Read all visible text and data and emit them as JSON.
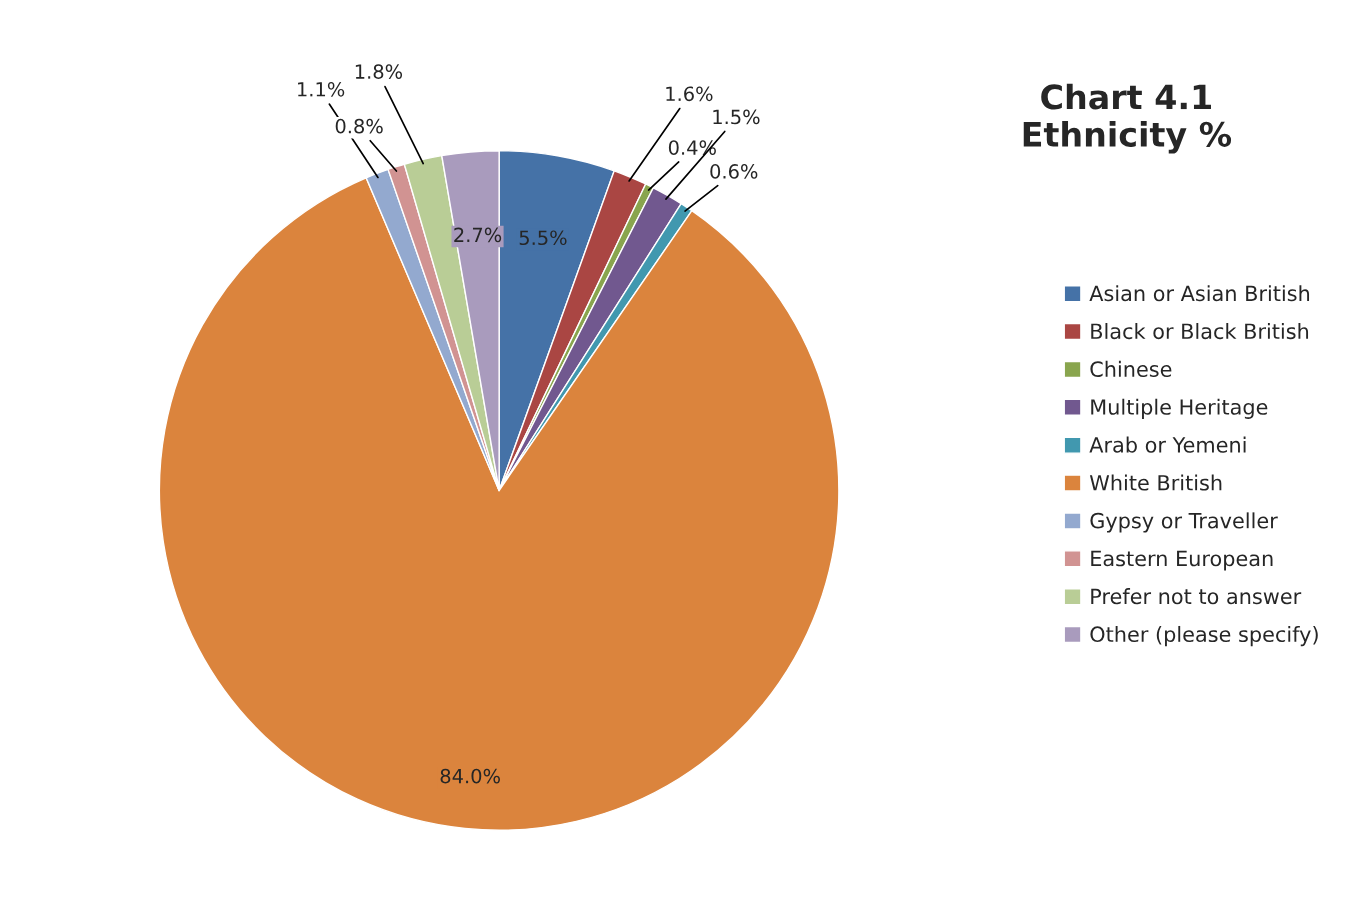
{
  "chart_data": {
    "type": "pie",
    "title": "Chart 4.1\nEthnicity %",
    "categories": [
      "Asian or Asian British",
      "Black or Black British",
      "Chinese",
      "Multiple Heritage",
      "Arab or Yemeni",
      "White British",
      "Gypsy or Traveller",
      "Eastern European",
      "Prefer not to answer",
      "Other (please specify)"
    ],
    "values": [
      5.5,
      1.6,
      0.4,
      1.5,
      0.6,
      84.0,
      1.1,
      0.8,
      1.8,
      2.7
    ],
    "value_labels": [
      "5.5%",
      "1.6%",
      "0.4%",
      "1.5%",
      "0.6%",
      "84.0%",
      "1.1%",
      "0.8%",
      "1.8%",
      "2.7%"
    ],
    "colors": [
      "#4572a7",
      "#aa4643",
      "#89a54e",
      "#71588f",
      "#4198af",
      "#db843d",
      "#93a9cf",
      "#d19392",
      "#b9cd96",
      "#a99bbd"
    ],
    "legend": "right"
  }
}
